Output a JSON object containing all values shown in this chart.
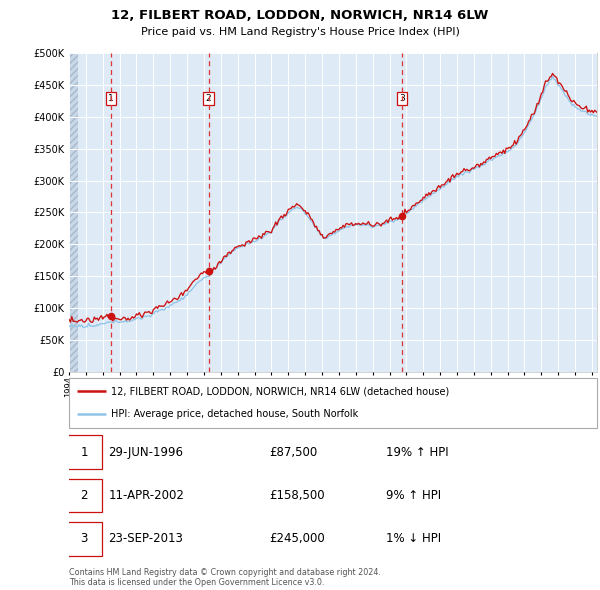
{
  "title": "12, FILBERT ROAD, LODDON, NORWICH, NR14 6LW",
  "subtitle": "Price paid vs. HM Land Registry's House Price Index (HPI)",
  "legend_line1": "12, FILBERT ROAD, LODDON, NORWICH, NR14 6LW (detached house)",
  "legend_line2": "HPI: Average price, detached house, South Norfolk",
  "sale1_date": 1996.49,
  "sale1_price": 87500,
  "sale2_date": 2002.27,
  "sale2_price": 158500,
  "sale3_date": 2013.73,
  "sale3_price": 245000,
  "sale1_text": "29-JUN-1996",
  "sale1_amount": "£87,500",
  "sale1_hpi": "19% ↑ HPI",
  "sale2_text": "11-APR-2002",
  "sale2_amount": "£158,500",
  "sale2_hpi": "9% ↑ HPI",
  "sale3_text": "23-SEP-2013",
  "sale3_amount": "£245,000",
  "sale3_hpi": "1% ↓ HPI",
  "hpi_color": "#8ec4e8",
  "price_color": "#cc1111",
  "dot_color": "#cc1111",
  "vline_color": "#dd3333",
  "bg_color": "#deeaf5",
  "ylim_max": 500000,
  "xlim_start": 1994.0,
  "xlim_end": 2025.3,
  "footer": "Contains HM Land Registry data © Crown copyright and database right 2024.\nThis data is licensed under the Open Government Licence v3.0."
}
